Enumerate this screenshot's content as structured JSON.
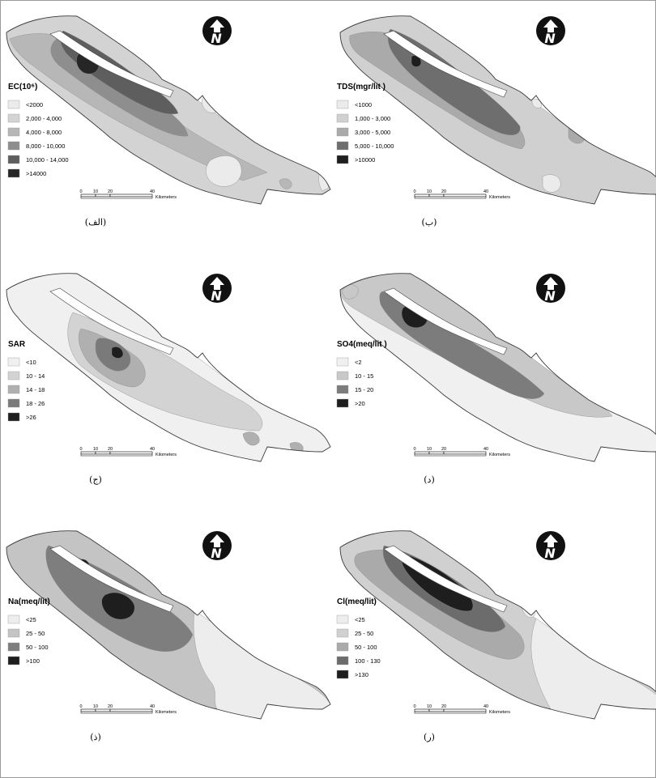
{
  "figure": {
    "panels": [
      {
        "id": "ec",
        "caption": "(الف)",
        "legend_title": "EC(10⁶)",
        "classes": [
          {
            "label": "<2000",
            "color": "#ebebeb"
          },
          {
            "label": "2,000 - 4,000",
            "color": "#d3d3d3"
          },
          {
            "label": "4,000 - 8,000",
            "color": "#b7b7b7"
          },
          {
            "label": "8,000 - 10,000",
            "color": "#8e8e8e"
          },
          {
            "label": "10,000 - 14,000",
            "color": "#5e5e5e"
          },
          {
            "label": ">14000",
            "color": "#262626"
          }
        ],
        "north_label": "N",
        "scale": {
          "ticks": [
            "0",
            "10",
            "20",
            "40"
          ],
          "unit": "Kilometers"
        }
      },
      {
        "id": "tds",
        "caption": "(ب)",
        "legend_title": "TDS(mgr/lit )",
        "classes": [
          {
            "label": "<1000",
            "color": "#ebebeb"
          },
          {
            "label": "1,000 - 3,000",
            "color": "#d0d0d0"
          },
          {
            "label": "3,000 - 5,000",
            "color": "#aaaaaa"
          },
          {
            "label": "5,000 - 10,000",
            "color": "#6e6e6e"
          },
          {
            "label": ">10000",
            "color": "#1e1e1e"
          }
        ],
        "north_label": "N",
        "scale": {
          "ticks": [
            "0",
            "10",
            "20",
            "40"
          ],
          "unit": "Kilometers"
        }
      },
      {
        "id": "sar",
        "caption": "(ج)",
        "legend_title": "SAR",
        "classes": [
          {
            "label": "<10",
            "color": "#f0f0f0"
          },
          {
            "label": "10 - 14",
            "color": "#d3d3d3"
          },
          {
            "label": "14 - 18",
            "color": "#b0b0b0"
          },
          {
            "label": "18 - 26",
            "color": "#7a7a7a"
          },
          {
            "label": ">26",
            "color": "#1e1e1e"
          }
        ],
        "north_label": "N",
        "scale": {
          "ticks": [
            "0",
            "10",
            "20",
            "40"
          ],
          "unit": "Kilometers"
        }
      },
      {
        "id": "so4",
        "caption": "(د)",
        "legend_title": "SO4(meq/lit )",
        "classes": [
          {
            "label": "<2",
            "color": "#f0f0f0"
          },
          {
            "label": "10 - 15",
            "color": "#c8c8c8"
          },
          {
            "label": "15 - 20",
            "color": "#7c7c7c"
          },
          {
            "label": ">20",
            "color": "#1e1e1e"
          }
        ],
        "north_label": "N",
        "scale": {
          "ticks": [
            "0",
            "10",
            "20",
            "40"
          ],
          "unit": "Kilometers"
        }
      },
      {
        "id": "na",
        "caption": "(ذ)",
        "legend_title": "Na(meq/lit)",
        "classes": [
          {
            "label": "<25",
            "color": "#ededed"
          },
          {
            "label": "25 - 50",
            "color": "#c4c4c4"
          },
          {
            "label": "50 - 100",
            "color": "#7e7e7e"
          },
          {
            "label": ">100",
            "color": "#1e1e1e"
          }
        ],
        "north_label": "N",
        "scale": {
          "ticks": [
            "0",
            "10",
            "20",
            "40"
          ],
          "unit": "Kilometers"
        }
      },
      {
        "id": "cl",
        "caption": "(ر)",
        "legend_title": "Cl(meq/lit)",
        "classes": [
          {
            "label": "<25",
            "color": "#ededed"
          },
          {
            "label": "25 - 50",
            "color": "#d0d0d0"
          },
          {
            "label": "50 - 100",
            "color": "#aaaaaa"
          },
          {
            "label": "100 - 130",
            "color": "#6c6c6c"
          },
          {
            "label": ">130",
            "color": "#1e1e1e"
          }
        ],
        "north_label": "N",
        "scale": {
          "ticks": [
            "0",
            "10",
            "20",
            "40"
          ],
          "unit": "Kilometers"
        }
      }
    ]
  }
}
